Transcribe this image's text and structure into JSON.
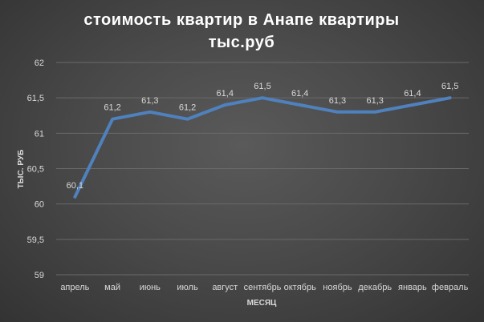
{
  "chart_data": {
    "type": "line",
    "title": [
      "стоимость  квартир  в  Анапе  квартиры",
      "тыс.руб"
    ],
    "xlabel": "МЕСЯЦ",
    "ylabel": "ТЫС. РУБ",
    "categories": [
      "апрель",
      "май",
      "июнь",
      "июль",
      "август",
      "сентябрь",
      "октябрь",
      "ноябрь",
      "декабрь",
      "январь",
      "февраль"
    ],
    "series": [
      {
        "values": [
          60.1,
          61.2,
          61.3,
          61.2,
          61.4,
          61.5,
          61.4,
          61.3,
          61.3,
          61.4,
          61.5
        ],
        "labels": [
          "60,1",
          "61,2",
          "61,3",
          "61,2",
          "61,4",
          "61,5",
          "61,4",
          "61,3",
          "61,3",
          "61,4",
          "61,5"
        ],
        "color": "#4f81bd"
      }
    ],
    "ylim": [
      59,
      62
    ],
    "yticks": [
      59,
      59.5,
      60,
      60.5,
      61,
      61.5,
      62
    ],
    "ytick_labels": [
      "59",
      "59,5",
      "60",
      "60,5",
      "61",
      "61,5",
      "62"
    ],
    "grid": true,
    "legend": false
  }
}
